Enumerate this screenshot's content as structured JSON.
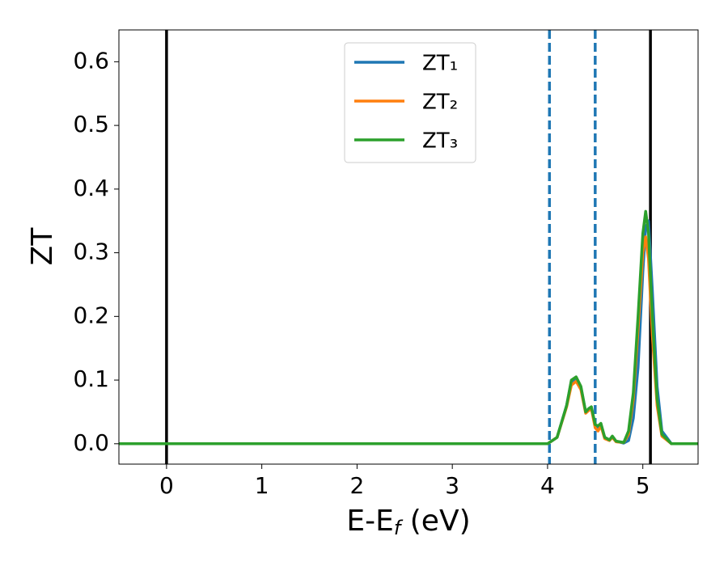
{
  "chart_data": {
    "type": "line",
    "xlabel": [
      "E-E",
      "f",
      " (eV)"
    ],
    "ylabel": "ZT",
    "x": [
      -0.5,
      4.0,
      4.1,
      4.2,
      4.25,
      4.3,
      4.35,
      4.4,
      4.43,
      4.46,
      4.5,
      4.53,
      4.56,
      4.6,
      4.65,
      4.68,
      4.72,
      4.8,
      4.85,
      4.9,
      4.95,
      5.0,
      5.03,
      5.06,
      5.1,
      5.15,
      5.2,
      5.3,
      5.6
    ],
    "series": [
      {
        "name": "ZT₁",
        "color": "#1f77b4",
        "values": [
          0,
          0,
          0.01,
          0.06,
          0.098,
          0.1,
          0.088,
          0.05,
          0.054,
          0.056,
          0.03,
          0.026,
          0.03,
          0.01,
          0.006,
          0.01,
          0.004,
          0.001,
          0.005,
          0.04,
          0.12,
          0.27,
          0.34,
          0.35,
          0.24,
          0.09,
          0.02,
          0,
          0
        ]
      },
      {
        "name": "ZT₂",
        "color": "#ff7f0e",
        "values": [
          0,
          0,
          0.01,
          0.058,
          0.092,
          0.098,
          0.085,
          0.048,
          0.052,
          0.055,
          0.025,
          0.02,
          0.028,
          0.008,
          0.005,
          0.01,
          0.003,
          0.002,
          0.015,
          0.07,
          0.18,
          0.3,
          0.325,
          0.29,
          0.17,
          0.06,
          0.012,
          0,
          0
        ]
      },
      {
        "name": "ZT₃",
        "color": "#2ca02c",
        "values": [
          0,
          0,
          0.01,
          0.06,
          0.1,
          0.105,
          0.09,
          0.05,
          0.055,
          0.058,
          0.03,
          0.028,
          0.032,
          0.01,
          0.006,
          0.012,
          0.004,
          0.002,
          0.02,
          0.08,
          0.2,
          0.33,
          0.365,
          0.33,
          0.2,
          0.07,
          0.015,
          0,
          0
        ]
      }
    ],
    "vlines": [
      {
        "x": 0,
        "color": "#000000",
        "dashed": false
      },
      {
        "x": 5.08,
        "color": "#000000",
        "dashed": false
      },
      {
        "x": 4.02,
        "color": "#1f77b4",
        "dashed": true
      },
      {
        "x": 4.5,
        "color": "#1f77b4",
        "dashed": true
      }
    ],
    "xlim": [
      -0.5,
      5.58
    ],
    "ylim": [
      -0.032,
      0.65
    ],
    "xticks": [
      0,
      1,
      2,
      3,
      4,
      5
    ],
    "yticks": [
      {
        "value": 0,
        "label": "0.0"
      },
      0.1,
      0.2,
      0.3,
      0.4,
      0.5,
      0.6
    ],
    "legend": "upper center",
    "grid": false
  }
}
